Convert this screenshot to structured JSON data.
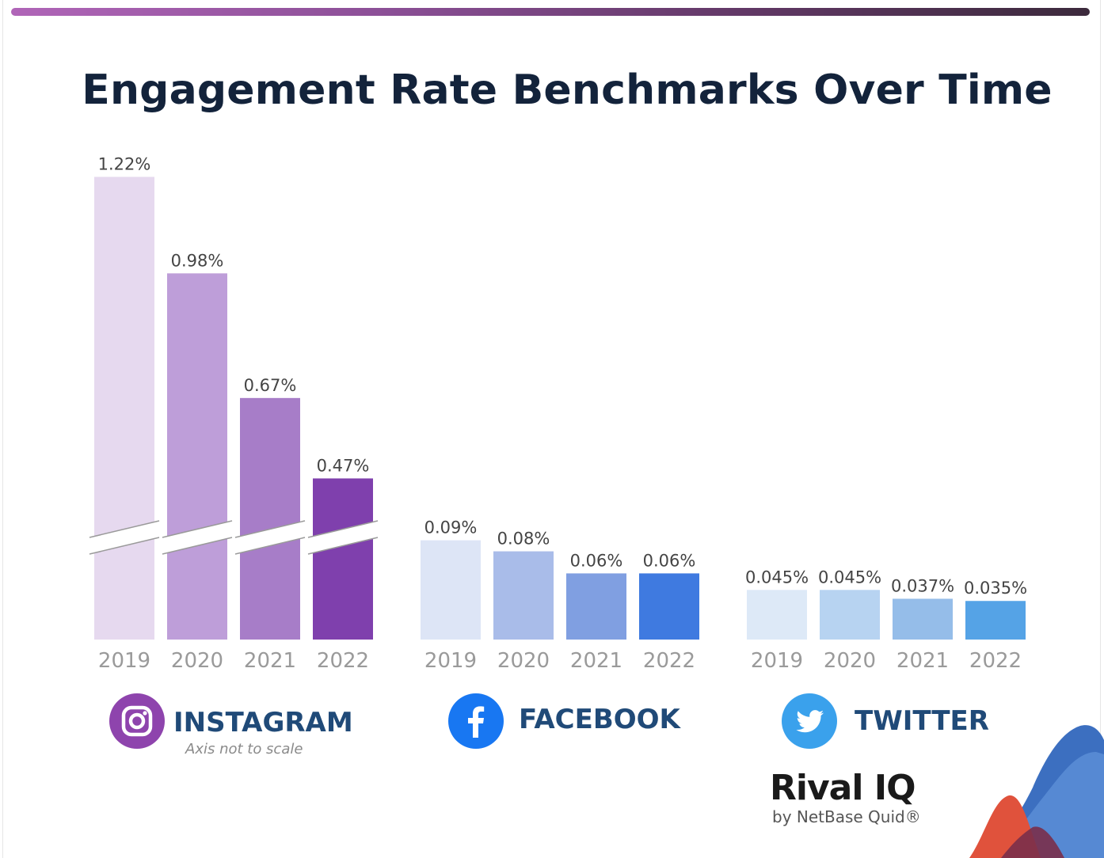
{
  "title": "Engagement Rate Benchmarks Over Time",
  "note": "Axis not to scale",
  "brand": {
    "name": "Rival IQ",
    "sub": "by NetBase Quid®"
  },
  "platforms": [
    {
      "label": "INSTAGRAM",
      "icon": "instagram-icon",
      "color": "#8e44ad"
    },
    {
      "label": "FACEBOOK",
      "icon": "facebook-icon",
      "color": "#1877f2"
    },
    {
      "label": "TWITTER",
      "icon": "twitter-icon",
      "color": "#3aa1ec"
    }
  ],
  "chart_data": {
    "type": "bar",
    "title": "Engagement Rate Benchmarks Over Time",
    "axis_broken": true,
    "axis_note": "Axis not to scale",
    "groups": [
      {
        "name": "INSTAGRAM",
        "categories": [
          "2019",
          "2020",
          "2021",
          "2022"
        ],
        "values": [
          1.22,
          0.98,
          0.67,
          0.47
        ],
        "labels": [
          "1.22%",
          "0.98%",
          "0.67%",
          "0.47%"
        ],
        "colors": [
          "#e6d9ef",
          "#be9ed9",
          "#a77dc8",
          "#7f40ad"
        ]
      },
      {
        "name": "FACEBOOK",
        "categories": [
          "2019",
          "2020",
          "2021",
          "2022"
        ],
        "values": [
          0.09,
          0.08,
          0.06,
          0.06
        ],
        "labels": [
          "0.09%",
          "0.08%",
          "0.06%",
          "0.06%"
        ],
        "colors": [
          "#dde5f6",
          "#a9bce9",
          "#809fe1",
          "#3f7ae0"
        ]
      },
      {
        "name": "TWITTER",
        "categories": [
          "2019",
          "2020",
          "2021",
          "2022"
        ],
        "values": [
          0.045,
          0.045,
          0.037,
          0.035
        ],
        "labels": [
          "0.045%",
          "0.045%",
          "0.037%",
          "0.035%"
        ],
        "colors": [
          "#dde9f7",
          "#b7d3f1",
          "#95bde9",
          "#55a3e6"
        ]
      }
    ]
  }
}
